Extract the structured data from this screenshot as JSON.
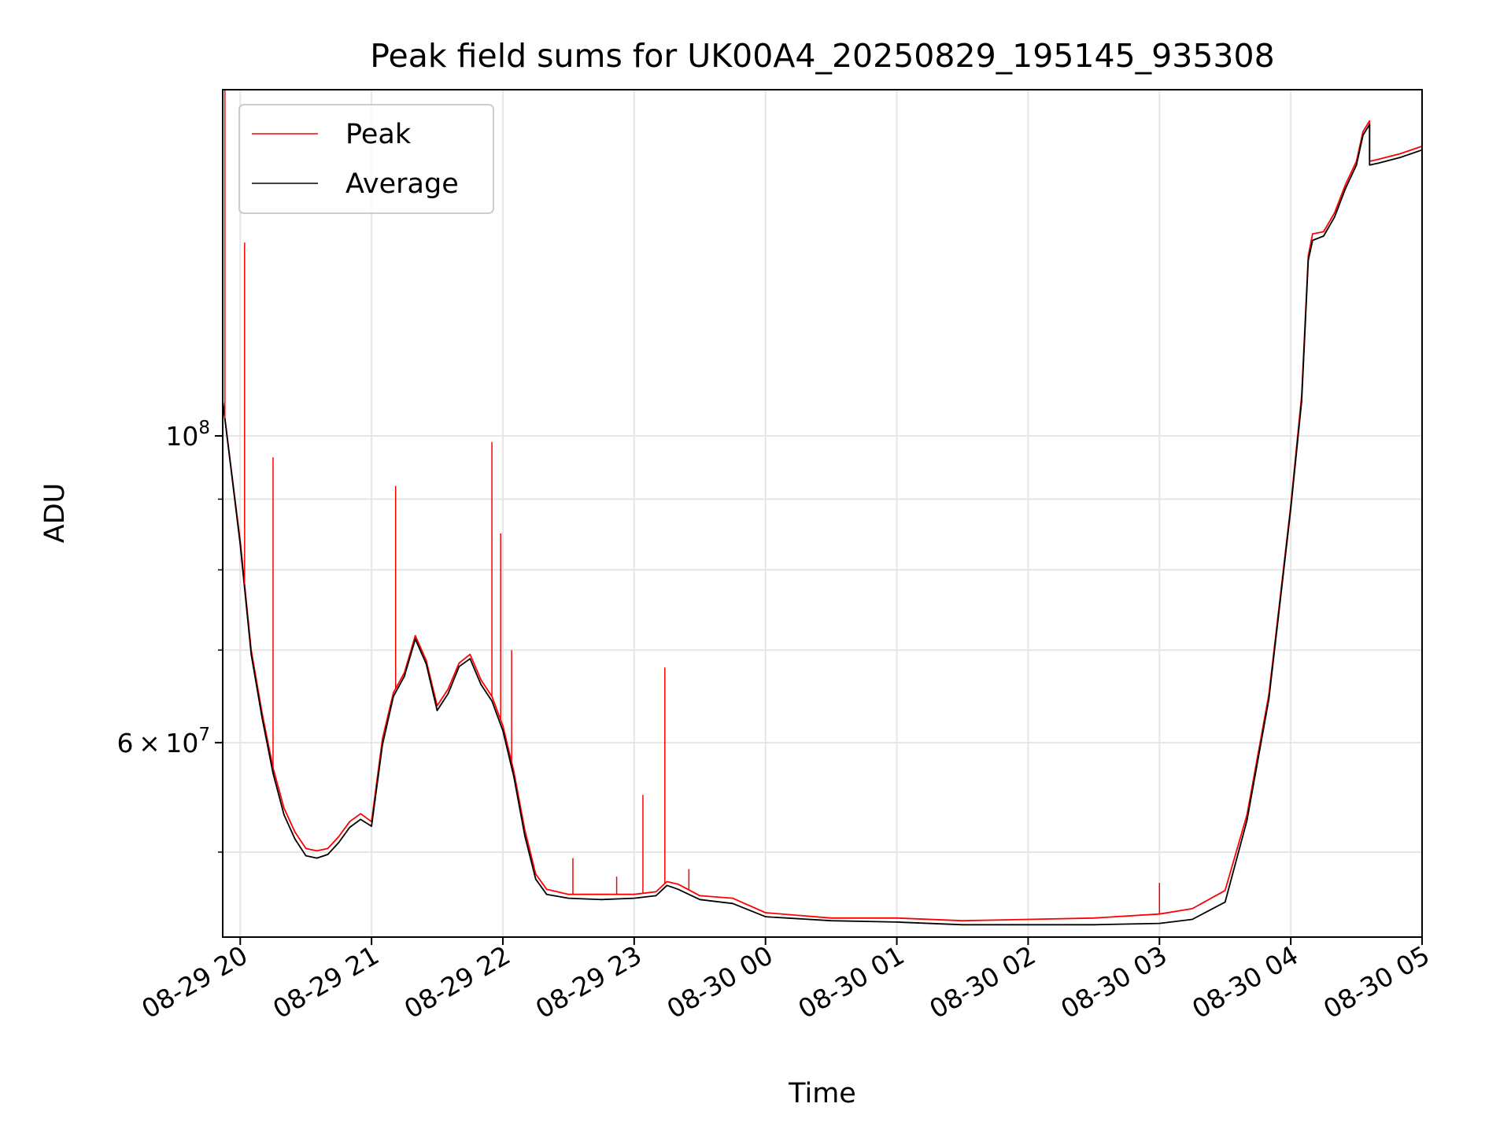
{
  "chart_data": {
    "type": "line",
    "title": "Peak field sums for UK00A4_20250829_195145_935308",
    "xlabel": "Time",
    "ylabel": "ADU",
    "y_scale": "log",
    "grid": true,
    "legend_position": "top-left",
    "xlim": [
      "2025-08-29 19:52",
      "2025-08-30 05:00"
    ],
    "ylim": [
      43400000,
      178000000
    ],
    "x_ticks": [
      {
        "time": "2025-08-29 20:00",
        "label": "08-29 20"
      },
      {
        "time": "2025-08-29 21:00",
        "label": "08-29 21"
      },
      {
        "time": "2025-08-29 22:00",
        "label": "08-29 22"
      },
      {
        "time": "2025-08-29 23:00",
        "label": "08-29 23"
      },
      {
        "time": "2025-08-30 00:00",
        "label": "08-30 00"
      },
      {
        "time": "2025-08-30 01:00",
        "label": "08-30 01"
      },
      {
        "time": "2025-08-30 02:00",
        "label": "08-30 02"
      },
      {
        "time": "2025-08-30 03:00",
        "label": "08-30 03"
      },
      {
        "time": "2025-08-30 04:00",
        "label": "08-30 04"
      },
      {
        "time": "2025-08-30 05:00",
        "label": "08-30 05"
      }
    ],
    "y_major_ticks": [
      {
        "value": 100000000,
        "base": "10",
        "exp": "8"
      },
      {
        "value": 60000000,
        "mantissa": "6",
        "base": "10",
        "exp": "7"
      }
    ],
    "y_minor_ticks": [
      50000000,
      70000000,
      80000000,
      90000000,
      200000000
    ],
    "series": [
      {
        "name": "Peak",
        "color": "#ff0000",
        "x": [
          "2025-08-29 19:52",
          "2025-08-29 20:00",
          "2025-08-29 20:05",
          "2025-08-29 20:10",
          "2025-08-29 20:15",
          "2025-08-29 20:20",
          "2025-08-29 20:25",
          "2025-08-29 20:30",
          "2025-08-29 20:35",
          "2025-08-29 20:40",
          "2025-08-29 20:45",
          "2025-08-29 20:50",
          "2025-08-29 20:55",
          "2025-08-29 21:00",
          "2025-08-29 21:05",
          "2025-08-29 21:10",
          "2025-08-29 21:15",
          "2025-08-29 21:20",
          "2025-08-29 21:25",
          "2025-08-29 21:30",
          "2025-08-29 21:35",
          "2025-08-29 21:40",
          "2025-08-29 21:45",
          "2025-08-29 21:50",
          "2025-08-29 21:55",
          "2025-08-29 22:00",
          "2025-08-29 22:05",
          "2025-08-29 22:10",
          "2025-08-29 22:15",
          "2025-08-29 22:20",
          "2025-08-29 22:30",
          "2025-08-29 22:45",
          "2025-08-29 23:00",
          "2025-08-29 23:10",
          "2025-08-29 23:15",
          "2025-08-29 23:20",
          "2025-08-29 23:30",
          "2025-08-29 23:45",
          "2025-08-30 00:00",
          "2025-08-30 00:30",
          "2025-08-30 01:00",
          "2025-08-30 01:30",
          "2025-08-30 02:00",
          "2025-08-30 02:30",
          "2025-08-30 03:00",
          "2025-08-30 03:15",
          "2025-08-30 03:30",
          "2025-08-30 03:40",
          "2025-08-30 03:50",
          "2025-08-30 03:55",
          "2025-08-30 04:00",
          "2025-08-30 04:05",
          "2025-08-30 04:08",
          "2025-08-30 04:10",
          "2025-08-30 04:15",
          "2025-08-30 04:20",
          "2025-08-30 04:25",
          "2025-08-30 04:30",
          "2025-08-30 04:33",
          "2025-08-30 04:36",
          "2025-08-30 04:36",
          "2025-08-30 04:40",
          "2025-08-30 04:50",
          "2025-08-30 05:00"
        ],
        "y": [
          106000000,
          84000000,
          70000000,
          63000000,
          57500000,
          53800000,
          51700000,
          50300000,
          50100000,
          50300000,
          51300000,
          52600000,
          53300000,
          52600000,
          60400000,
          65200000,
          67400000,
          71700000,
          68800000,
          63800000,
          65600000,
          68500000,
          69500000,
          66600000,
          64800000,
          61700000,
          57200000,
          51900000,
          48200000,
          47000000,
          46600000,
          46600000,
          46600000,
          46800000,
          47600000,
          47400000,
          46500000,
          46300000,
          45200000,
          44800000,
          44800000,
          44600000,
          44700000,
          44800000,
          45100000,
          45500000,
          46900000,
          53200000,
          65000000,
          76000000,
          89000000,
          107000000,
          135000000,
          140000000,
          140500000,
          145000000,
          152000000,
          158000000,
          166000000,
          169000000,
          158000000,
          158500000,
          160000000,
          162000000
        ]
      },
      {
        "name": "Average",
        "color": "#000000",
        "x": [
          "2025-08-29 19:52",
          "2025-08-29 20:00",
          "2025-08-29 20:05",
          "2025-08-29 20:10",
          "2025-08-29 20:15",
          "2025-08-29 20:20",
          "2025-08-29 20:25",
          "2025-08-29 20:30",
          "2025-08-29 20:35",
          "2025-08-29 20:40",
          "2025-08-29 20:45",
          "2025-08-29 20:50",
          "2025-08-29 20:55",
          "2025-08-29 21:00",
          "2025-08-29 21:05",
          "2025-08-29 21:10",
          "2025-08-29 21:15",
          "2025-08-29 21:20",
          "2025-08-29 21:25",
          "2025-08-29 21:30",
          "2025-08-29 21:35",
          "2025-08-29 21:40",
          "2025-08-29 21:45",
          "2025-08-29 21:50",
          "2025-08-29 21:55",
          "2025-08-29 22:00",
          "2025-08-29 22:05",
          "2025-08-29 22:10",
          "2025-08-29 22:15",
          "2025-08-29 22:20",
          "2025-08-29 22:30",
          "2025-08-29 22:45",
          "2025-08-29 23:00",
          "2025-08-29 23:10",
          "2025-08-29 23:15",
          "2025-08-29 23:20",
          "2025-08-29 23:30",
          "2025-08-29 23:45",
          "2025-08-30 00:00",
          "2025-08-30 00:30",
          "2025-08-30 01:00",
          "2025-08-30 01:30",
          "2025-08-30 02:00",
          "2025-08-30 02:30",
          "2025-08-30 03:00",
          "2025-08-30 03:15",
          "2025-08-30 03:30",
          "2025-08-30 03:40",
          "2025-08-30 03:50",
          "2025-08-30 03:55",
          "2025-08-30 04:00",
          "2025-08-30 04:05",
          "2025-08-30 04:08",
          "2025-08-30 04:10",
          "2025-08-30 04:15",
          "2025-08-30 04:20",
          "2025-08-30 04:25",
          "2025-08-30 04:30",
          "2025-08-30 04:33",
          "2025-08-30 04:36",
          "2025-08-30 04:36",
          "2025-08-30 04:40",
          "2025-08-30 04:50",
          "2025-08-30 05:00"
        ],
        "y": [
          106000000,
          83500000,
          69500000,
          62500000,
          57000000,
          53200000,
          51100000,
          49700000,
          49500000,
          49800000,
          50800000,
          52100000,
          52800000,
          52200000,
          59800000,
          64800000,
          67000000,
          71300000,
          68400000,
          63300000,
          65100000,
          68100000,
          69000000,
          66100000,
          64300000,
          61200000,
          56700000,
          51400000,
          47800000,
          46600000,
          46300000,
          46200000,
          46300000,
          46500000,
          47300000,
          47000000,
          46200000,
          45900000,
          44900000,
          44600000,
          44500000,
          44300000,
          44300000,
          44300000,
          44400000,
          44700000,
          46000000,
          52700000,
          64500000,
          75500000,
          88500000,
          106000000,
          134000000,
          138500000,
          139500000,
          144000000,
          151000000,
          157000000,
          165000000,
          168000000,
          157000000,
          157500000,
          159000000,
          161000000
        ]
      }
    ],
    "spikes": {
      "series": "Peak",
      "color": "#ff0000",
      "items": [
        {
          "x": "2025-08-29 19:53",
          "y": 178000000
        },
        {
          "x": "2025-08-29 20:02",
          "y": 138000000
        },
        {
          "x": "2025-08-29 20:15",
          "y": 96500000
        },
        {
          "x": "2025-08-29 21:11",
          "y": 92000000
        },
        {
          "x": "2025-08-29 21:55",
          "y": 99000000
        },
        {
          "x": "2025-08-29 21:59",
          "y": 85000000
        },
        {
          "x": "2025-08-29 22:04",
          "y": 70000000
        },
        {
          "x": "2025-08-29 22:32",
          "y": 49500000
        },
        {
          "x": "2025-08-29 22:52",
          "y": 48000000
        },
        {
          "x": "2025-08-29 23:04",
          "y": 55000000
        },
        {
          "x": "2025-08-29 23:14",
          "y": 68000000
        },
        {
          "x": "2025-08-29 23:25",
          "y": 48600000
        },
        {
          "x": "2025-08-30 03:00",
          "y": 47500000
        }
      ]
    }
  },
  "legend": {
    "items": [
      {
        "label": "Peak",
        "color": "#ff0000"
      },
      {
        "label": "Average",
        "color": "#000000"
      }
    ]
  }
}
